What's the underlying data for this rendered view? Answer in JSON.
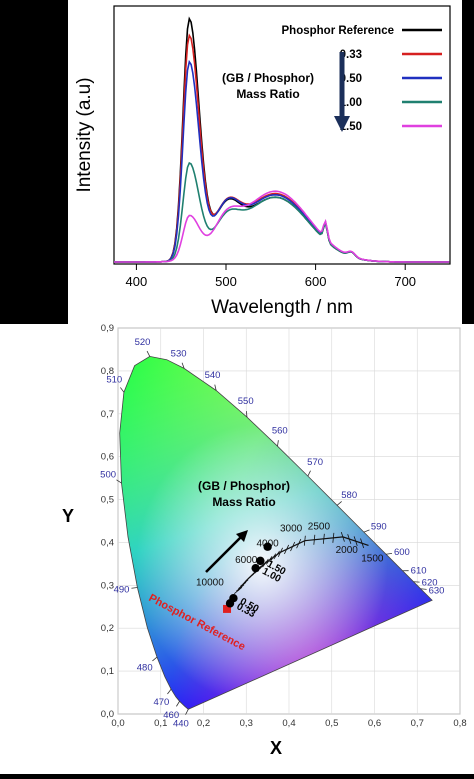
{
  "chart_data": [
    {
      "type": "line",
      "xlabel": "Wavelength / nm",
      "ylabel": "Intensity (a.u)",
      "xlim": [
        375,
        750
      ],
      "xticks": [
        400,
        500,
        600,
        700
      ],
      "legend_placement": "top-right",
      "annotation": "(GB / Phosphor)\nMass Ratio",
      "series": [
        {
          "name": "Phosphor Reference",
          "color": "#000000",
          "peak1": 1.0,
          "peak2": 0.27
        },
        {
          "name": "0.33",
          "color": "#d62020",
          "peak1": 0.93,
          "peak2": 0.285
        },
        {
          "name": "0.50",
          "color": "#2030c0",
          "peak1": 0.82,
          "peak2": 0.28
        },
        {
          "name": "1.00",
          "color": "#208070",
          "peak1": 0.4,
          "peak2": 0.27
        },
        {
          "name": "1.50",
          "color": "#e040e0",
          "peak1": 0.18,
          "peak2": 0.295
        }
      ]
    },
    {
      "type": "scatter",
      "xlabel": "X",
      "ylabel": "Y",
      "xlim": [
        0,
        0.8
      ],
      "ylim": [
        0,
        0.9
      ],
      "xticks": [
        "0,0",
        "0,1",
        "0,2",
        "0,3",
        "0,4",
        "0,5",
        "0,6",
        "0,7",
        "0,8"
      ],
      "yticks": [
        "0,0",
        "0,1",
        "0,2",
        "0,3",
        "0,4",
        "0,5",
        "0,6",
        "0,7",
        "0,8",
        "0,9"
      ],
      "locus_labels": [
        "440",
        "460",
        "470",
        "480",
        "490",
        "500",
        "510",
        "520",
        "530",
        "540",
        "550",
        "560",
        "570",
        "580",
        "590",
        "600",
        "610",
        "620",
        "630"
      ],
      "cct_labels": [
        "10000",
        "6000",
        "4000",
        "3000",
        "2500",
        "2000",
        "1500"
      ],
      "annotation": "(GB / Phosphor)\nMass Ratio",
      "reference_label": "Phosphor Reference",
      "points": [
        {
          "label": "Phosphor Reference",
          "x": 0.255,
          "y": 0.245,
          "color": "#e02020",
          "shape": "square"
        },
        {
          "label": "0.33",
          "x": 0.262,
          "y": 0.258,
          "color": "#000000",
          "shape": "circle"
        },
        {
          "label": "0.50",
          "x": 0.27,
          "y": 0.27,
          "color": "#000000",
          "shape": "circle"
        },
        {
          "label": "1.00",
          "x": 0.322,
          "y": 0.34,
          "color": "#000000",
          "shape": "circle"
        },
        {
          "label": "1.50",
          "x": 0.333,
          "y": 0.357,
          "color": "#000000",
          "shape": "circle"
        },
        {
          "label": "",
          "x": 0.35,
          "y": 0.39,
          "color": "#000000",
          "shape": "circle"
        }
      ]
    }
  ]
}
